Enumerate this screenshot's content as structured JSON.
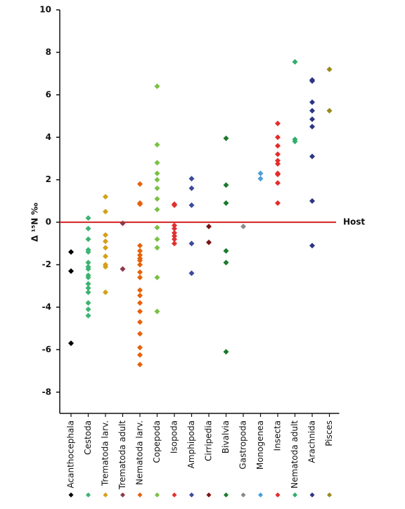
{
  "chart_data": {
    "type": "strip",
    "y_label": "Δ ¹⁵N ‰",
    "ylim": [
      -9,
      10
    ],
    "yticks": [
      -8,
      -6,
      -4,
      -2,
      0,
      2,
      4,
      6,
      8,
      10
    ],
    "host_line": {
      "value": 0,
      "label": "Host",
      "color": "#d42020"
    },
    "series": [
      {
        "name": "Acanthocephala",
        "color": "#000000",
        "values": [
          -1.4,
          -2.3,
          -5.7
        ]
      },
      {
        "name": "Cestoda",
        "color": "#3cb371",
        "values": [
          0.2,
          -0.3,
          -0.8,
          -1.3,
          -1.4,
          -1.9,
          -2.1,
          -2.2,
          -2.5,
          -2.6,
          -2.9,
          -3.1,
          -3.3,
          -3.8,
          -4.1,
          -4.4
        ]
      },
      {
        "name": "Trematoda larv.",
        "color": "#d4a017",
        "values": [
          1.2,
          0.5,
          -0.6,
          -0.9,
          -1.2,
          -1.6,
          -2.0,
          -2.1,
          -3.3
        ]
      },
      {
        "name": "Trematoda adult",
        "color": "#8b3a4a",
        "values": [
          -0.05,
          -2.2
        ]
      },
      {
        "name": "Nematoda larv.",
        "color": "#e8600a",
        "values": [
          1.8,
          0.9,
          0.85,
          -1.1,
          -1.35,
          -1.55,
          -1.7,
          -1.8,
          -2.0,
          -2.35,
          -2.6,
          -3.2,
          -3.45,
          -3.8,
          -4.2,
          -4.7,
          -5.25,
          -5.9,
          -6.25,
          -6.7
        ]
      },
      {
        "name": "Copepoda",
        "color": "#7ac143",
        "values": [
          6.4,
          3.65,
          2.8,
          2.3,
          2.0,
          1.6,
          1.1,
          0.6,
          -0.25,
          -0.8,
          -1.2,
          -2.6,
          -4.2
        ]
      },
      {
        "name": "Isopoda",
        "color": "#e03030",
        "values": [
          0.85,
          0.8,
          -0.15,
          -0.3,
          -0.5,
          -0.65,
          -0.8,
          -1.0
        ]
      },
      {
        "name": "Amphipoda",
        "color": "#3b4a9c",
        "values": [
          2.05,
          1.6,
          0.8,
          -1.0,
          -2.4
        ]
      },
      {
        "name": "Cirripedia",
        "color": "#7b1616",
        "values": [
          -0.2,
          -0.95
        ]
      },
      {
        "name": "Bivalvia",
        "color": "#1a7a2e",
        "values": [
          3.95,
          1.75,
          0.9,
          -1.35,
          -1.9,
          -6.1
        ]
      },
      {
        "name": "Gastropoda",
        "color": "#8a8a8a",
        "values": [
          -0.2
        ]
      },
      {
        "name": "Monogenea",
        "color": "#4a9fd8",
        "values": [
          2.3,
          2.05
        ]
      },
      {
        "name": "Insecta",
        "color": "#e52b2b",
        "values": [
          4.65,
          4.0,
          3.6,
          3.2,
          2.9,
          2.75,
          2.3,
          2.25,
          1.85,
          0.9
        ]
      },
      {
        "name": "Nematoda adult",
        "color": "#2fae6a",
        "values": [
          7.55,
          3.9,
          3.8
        ]
      },
      {
        "name": "Arachnida",
        "color": "#2c3583",
        "values": [
          6.7,
          6.65,
          5.65,
          5.25,
          4.85,
          4.5,
          3.1,
          1.0,
          -1.1
        ]
      },
      {
        "name": "Pisces",
        "color": "#9a8a1a",
        "values": [
          7.2,
          5.25
        ]
      }
    ]
  }
}
